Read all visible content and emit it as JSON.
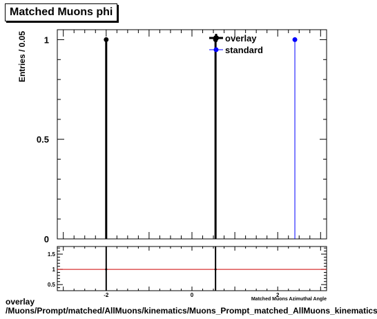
{
  "title": "Matched Muons phi",
  "footer": {
    "line1": "overlay",
    "line2": "/Muons/Prompt/matched/AllMuons/kinematics/Muons_Prompt_matched_AllMuons_kinematics_phi"
  },
  "chart_data": [
    {
      "type": "scatter",
      "title": "Matched Muons phi",
      "ylabel": "Entries / 0.05",
      "xlim": [
        -3.14,
        3.14
      ],
      "ylim": [
        0,
        1.05
      ],
      "yticks": [
        0,
        0.5,
        1
      ],
      "ytick_labels": [
        "0",
        "0.5",
        "1"
      ],
      "legend_position": "top-right",
      "series": [
        {
          "name": "overlay",
          "color": "#000000",
          "x": [
            -2.0,
            0.55
          ],
          "y": [
            1,
            1
          ]
        },
        {
          "name": "standard",
          "color": "#0000ff",
          "x": [
            2.4
          ],
          "y": [
            1
          ]
        }
      ]
    },
    {
      "type": "line",
      "xlabel": "Matched Muons Azimuthal Angle",
      "xlim": [
        -3.14,
        3.14
      ],
      "ylim": [
        0.3,
        1.75
      ],
      "xticks": [
        -2,
        0,
        2
      ],
      "xtick_labels": [
        "-2",
        "0",
        "2"
      ],
      "yticks": [
        0.5,
        1,
        1.5
      ],
      "ytick_labels": [
        "0.5",
        "1",
        "1.5"
      ],
      "reference_line": {
        "y": 1,
        "color": "#cc0000"
      },
      "series": [
        {
          "color": "#000000",
          "x": [
            -2.0,
            0.55
          ],
          "y": [
            1,
            1
          ]
        }
      ]
    }
  ]
}
